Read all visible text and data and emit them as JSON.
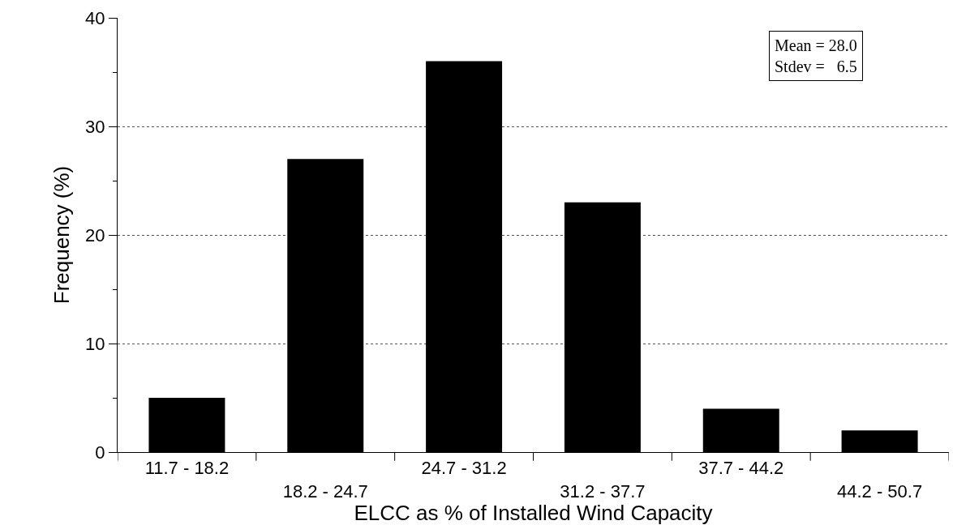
{
  "chart_data": {
    "type": "bar",
    "xlabel": "ELCC as % of Installed Wind Capacity",
    "ylabel": "Frequency (%)",
    "categories": [
      "11.7 - 18.2",
      "18.2 - 24.7",
      "24.7 - 31.2",
      "31.2 - 37.7",
      "37.7 - 44.2",
      "44.2 - 50.7"
    ],
    "values": [
      5,
      27,
      36,
      23,
      4,
      2
    ],
    "color": "#000000",
    "ylim": [
      0,
      40
    ],
    "yticks": [
      0,
      {
        "value": 5,
        "label": null
      },
      10,
      {
        "value": 15,
        "label": null
      },
      20,
      {
        "value": 25,
        "label": null
      },
      30,
      {
        "value": 35,
        "label": null
      },
      40
    ],
    "grid": "y",
    "annotations": [
      "Mean = 28.0",
      "Stdev =   6.5"
    ]
  }
}
